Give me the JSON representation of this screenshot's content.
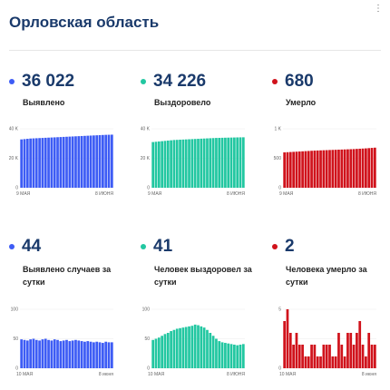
{
  "title": "Орловская область",
  "cards": [
    {
      "value": "36 022",
      "label": "Выявлено",
      "color": "#3d5cf5",
      "ticks": [
        "40 K",
        "20 K",
        "0"
      ],
      "start": "9 МАЯ",
      "end": "8 ИЮНЯ",
      "chart_data": {
        "type": "bar",
        "ylim": [
          0,
          40000
        ],
        "values": [
          32800,
          33000,
          33200,
          33400,
          33500,
          33600,
          33700,
          33800,
          33900,
          34000,
          34100,
          34200,
          34300,
          34400,
          34500,
          34600,
          34700,
          34800,
          34900,
          35000,
          35100,
          35200,
          35300,
          35400,
          35500,
          35600,
          35700,
          35800,
          35900,
          35950,
          36022
        ]
      }
    },
    {
      "value": "34 226",
      "label": "Выздоровело",
      "color": "#22c7a1",
      "ticks": [
        "40 K",
        "20 K",
        "0"
      ],
      "start": "9 МАЯ",
      "end": "8 ИЮНЯ",
      "chart_data": {
        "type": "bar",
        "ylim": [
          0,
          40000
        ],
        "values": [
          31000,
          31200,
          31400,
          31600,
          31800,
          32000,
          32200,
          32400,
          32500,
          32600,
          32700,
          32800,
          32900,
          33000,
          33100,
          33200,
          33300,
          33400,
          33500,
          33600,
          33700,
          33800,
          33850,
          33900,
          33950,
          34000,
          34050,
          34100,
          34150,
          34200,
          34226
        ]
      }
    },
    {
      "value": "680",
      "label": "Умерло",
      "color": "#d0121b",
      "ticks": [
        "1 K",
        "500",
        "0"
      ],
      "start": "9 МАЯ",
      "end": "8 ИЮНЯ",
      "chart_data": {
        "type": "bar",
        "ylim": [
          0,
          1000
        ],
        "values": [
          600,
          603,
          606,
          609,
          612,
          615,
          618,
          621,
          624,
          627,
          630,
          632,
          634,
          636,
          638,
          640,
          642,
          644,
          646,
          648,
          650,
          652,
          654,
          656,
          659,
          662,
          665,
          668,
          672,
          676,
          680
        ]
      }
    },
    {
      "value": "44",
      "label": "Выявлено случаев за сутки",
      "color": "#3d5cf5",
      "ticks": [
        "100",
        "50",
        "0"
      ],
      "start": "10 МАЯ",
      "end": "8 июня",
      "chart_data": {
        "type": "bar",
        "ylim": [
          0,
          100
        ],
        "values": [
          49,
          48,
          47,
          49,
          50,
          48,
          47,
          49,
          50,
          48,
          47,
          49,
          48,
          46,
          47,
          48,
          46,
          47,
          48,
          47,
          46,
          45,
          46,
          45,
          44,
          45,
          44,
          43,
          45,
          44,
          44
        ]
      }
    },
    {
      "value": "41",
      "label": "Человек выздоровел за сутки",
      "color": "#22c7a1",
      "ticks": [
        "100",
        "50",
        "0"
      ],
      "start": "10 МАЯ",
      "end": "8 ИЮНЯ",
      "chart_data": {
        "type": "bar",
        "ylim": [
          0,
          100
        ],
        "values": [
          48,
          50,
          52,
          55,
          58,
          60,
          63,
          65,
          67,
          68,
          69,
          70,
          71,
          72,
          74,
          73,
          71,
          69,
          65,
          60,
          55,
          50,
          46,
          44,
          43,
          42,
          41,
          40,
          39,
          40,
          41
        ]
      }
    },
    {
      "value": "2",
      "label": "Человека умерло за сутки",
      "color": "#d0121b",
      "ticks": [
        "5",
        "",
        "0"
      ],
      "start": "10 МАЯ",
      "end": "8 июня",
      "chart_data": {
        "type": "bar",
        "ylim": [
          0,
          5
        ],
        "values": [
          4,
          5,
          3,
          2,
          3,
          2,
          2,
          1,
          1,
          2,
          2,
          1,
          1,
          2,
          2,
          2,
          1,
          1,
          3,
          2,
          1,
          3,
          3,
          2,
          3,
          4,
          2,
          1,
          3,
          2,
          2
        ]
      }
    }
  ]
}
